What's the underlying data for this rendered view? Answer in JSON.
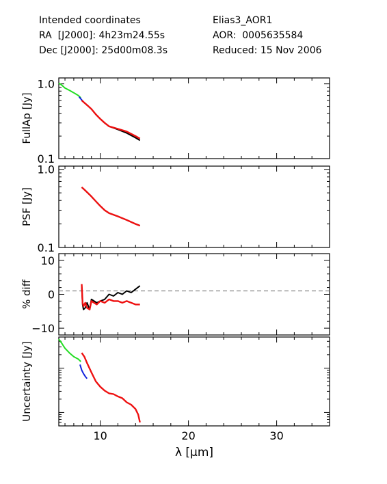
{
  "header": {
    "left": [
      "Intended coordinates",
      "RA  [J2000]: 4h23m24.55s",
      "Dec [J2000]: 25d00m08.3s"
    ],
    "right": [
      "Elias3_AOR1",
      "AOR:  0005635584",
      "Reduced: 15 Nov 2006"
    ]
  },
  "colors": {
    "axes": "#000000",
    "black": "#000000",
    "red": "#ee1111",
    "blue": "#1122dd",
    "green": "#22dd22",
    "ref_line": "#777777"
  },
  "chart_data": [
    {
      "type": "line",
      "panel": "fullap",
      "ylabel": "FullAp [Jy]",
      "yscale": "log",
      "ylim": [
        0.1,
        1.2
      ],
      "xlim": [
        5.3,
        36
      ],
      "yticks": [
        {
          "v": 0.1,
          "label": "0.1"
        },
        {
          "v": 1.0,
          "label": "1.0"
        }
      ],
      "series": [
        {
          "color": "green",
          "x": [
            5.3,
            5.6,
            6.0,
            6.5,
            7.0,
            7.5,
            7.8
          ],
          "y": [
            1.02,
            0.97,
            0.88,
            0.82,
            0.76,
            0.7,
            0.65
          ]
        },
        {
          "color": "blue",
          "x": [
            7.6,
            7.8,
            8.0,
            8.1
          ],
          "y": [
            0.67,
            0.63,
            0.59,
            0.57
          ]
        },
        {
          "color": "black",
          "x": [
            7.9,
            8.5,
            9.0,
            9.5,
            10.0,
            10.5,
            11.0,
            12.0,
            13.0,
            14.0,
            14.5
          ],
          "y": [
            0.6,
            0.52,
            0.46,
            0.39,
            0.34,
            0.3,
            0.27,
            0.245,
            0.22,
            0.19,
            0.175
          ]
        },
        {
          "color": "red",
          "x": [
            7.9,
            8.5,
            9.0,
            9.5,
            10.0,
            10.5,
            11.0,
            12.0,
            13.0,
            14.0,
            14.5
          ],
          "y": [
            0.6,
            0.52,
            0.46,
            0.39,
            0.34,
            0.3,
            0.27,
            0.25,
            0.23,
            0.2,
            0.185
          ]
        }
      ]
    },
    {
      "type": "line",
      "panel": "psf",
      "ylabel": "PSF [Jy]",
      "yscale": "log",
      "ylim": [
        0.1,
        1.1
      ],
      "xlim": [
        5.3,
        36
      ],
      "yticks": [
        {
          "v": 0.1,
          "label": "0.1"
        },
        {
          "v": 1.0,
          "label": "1.0"
        }
      ],
      "series": [
        {
          "color": "black",
          "x": [
            7.9,
            8.2,
            8.5,
            9.0,
            9.5,
            10.0,
            10.5,
            11.0,
            12.0,
            13.0,
            14.0,
            14.5
          ],
          "y": [
            0.59,
            0.55,
            0.51,
            0.45,
            0.39,
            0.34,
            0.3,
            0.275,
            0.25,
            0.225,
            0.2,
            0.19
          ]
        },
        {
          "color": "red",
          "x": [
            7.9,
            8.2,
            8.5,
            9.0,
            9.5,
            10.0,
            10.5,
            11.0,
            12.0,
            13.0,
            14.0,
            14.5
          ],
          "y": [
            0.59,
            0.55,
            0.51,
            0.45,
            0.39,
            0.34,
            0.3,
            0.275,
            0.25,
            0.225,
            0.2,
            0.19
          ]
        }
      ]
    },
    {
      "type": "line",
      "panel": "diff",
      "ylabel": "% diff",
      "yscale": "linear",
      "ylim": [
        -12,
        12
      ],
      "xlim": [
        5.3,
        36
      ],
      "yticks": [
        {
          "v": -10,
          "label": "−10"
        },
        {
          "v": 0,
          "label": "0"
        },
        {
          "v": 10,
          "label": "10"
        }
      ],
      "ref_line": 1,
      "series": [
        {
          "color": "black",
          "x": [
            7.9,
            8.0,
            8.1,
            8.3,
            8.5,
            8.8,
            9.0,
            9.3,
            9.6,
            10.0,
            10.5,
            11.0,
            11.5,
            12.0,
            12.5,
            13.0,
            13.5,
            14.0,
            14.5
          ],
          "y": [
            2.5,
            -3.0,
            -4.5,
            -4.0,
            -2.5,
            -4.5,
            -1.5,
            -2.0,
            -2.5,
            -2.0,
            -1.5,
            0.0,
            -0.5,
            0.5,
            0.0,
            1.0,
            0.5,
            1.5,
            2.5
          ]
        },
        {
          "color": "red",
          "x": [
            7.9,
            8.0,
            8.1,
            8.3,
            8.5,
            8.8,
            9.0,
            9.3,
            9.6,
            10.0,
            10.5,
            11.0,
            11.5,
            12.0,
            12.5,
            13.0,
            13.5,
            14.0,
            14.5
          ],
          "y": [
            3.0,
            -2.5,
            -3.5,
            -2.5,
            -4.0,
            -4.5,
            -2.0,
            -2.5,
            -3.0,
            -2.0,
            -2.5,
            -1.5,
            -2.0,
            -2.0,
            -2.5,
            -2.0,
            -2.5,
            -3.0,
            -3.0
          ]
        }
      ]
    },
    {
      "type": "line",
      "panel": "uncertainty",
      "ylabel": "Uncertainty [Jy]",
      "yscale": "log",
      "ylim": [
        0.0005,
        0.05
      ],
      "xlim": [
        5.3,
        36
      ],
      "yticks": [],
      "xlabel": "λ [μm]",
      "xticks": [
        {
          "v": 10,
          "label": "10"
        },
        {
          "v": 20,
          "label": "20"
        },
        {
          "v": 30,
          "label": "30"
        }
      ],
      "series": [
        {
          "color": "green",
          "x": [
            5.3,
            5.6,
            6.0,
            6.5,
            7.0,
            7.5,
            7.8
          ],
          "y": [
            0.045,
            0.037,
            0.028,
            0.022,
            0.018,
            0.016,
            0.014
          ]
        },
        {
          "color": "blue",
          "x": [
            7.7,
            7.9,
            8.1,
            8.3,
            8.5
          ],
          "y": [
            0.012,
            0.009,
            0.0075,
            0.0065,
            0.0058
          ]
        },
        {
          "color": "red",
          "x": [
            7.9,
            8.2,
            8.5,
            9.0,
            9.5,
            10.0,
            10.5,
            11.0,
            11.5,
            12.0,
            12.5,
            13.0,
            13.5,
            14.0,
            14.3,
            14.5
          ],
          "y": [
            0.022,
            0.018,
            0.013,
            0.008,
            0.005,
            0.0038,
            0.0031,
            0.0027,
            0.0026,
            0.0023,
            0.0021,
            0.0017,
            0.0015,
            0.0012,
            0.0009,
            0.0006
          ]
        }
      ]
    }
  ]
}
